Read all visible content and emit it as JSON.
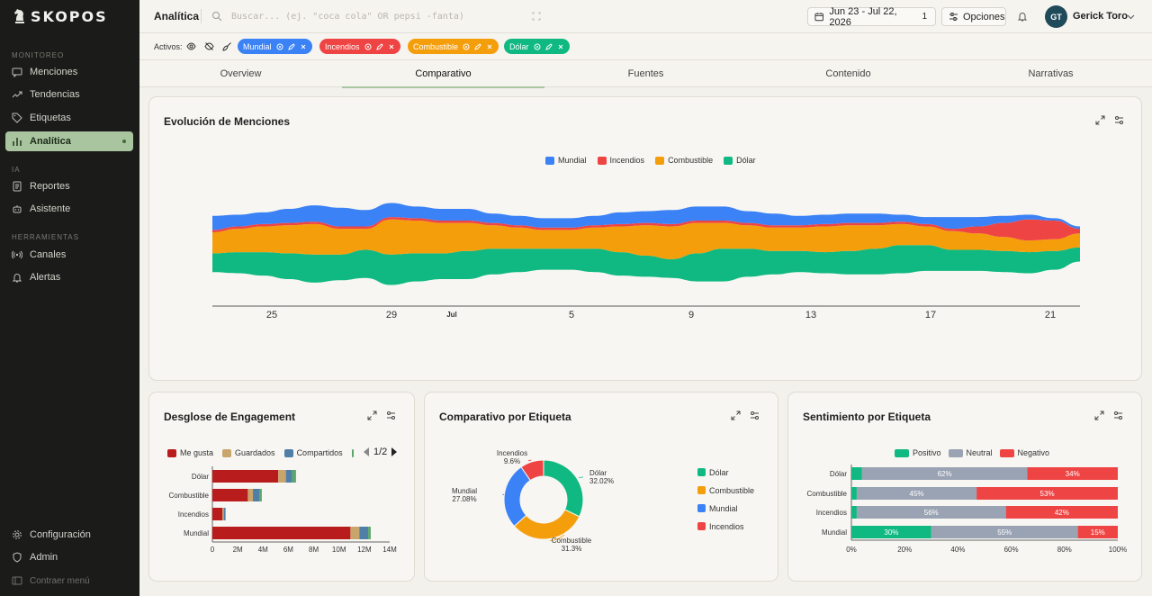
{
  "app": {
    "brand": "SKOPOS"
  },
  "sidebar": {
    "sections": [
      "MONITOREO",
      "IA",
      "HERRAMIENTAS"
    ],
    "items": [
      {
        "label": "Menciones",
        "icon": "chat-icon"
      },
      {
        "label": "Tendencias",
        "icon": "trend-icon"
      },
      {
        "label": "Etiquetas",
        "icon": "tag-icon"
      },
      {
        "label": "Analítica",
        "icon": "bar-chart-icon",
        "active": true
      },
      {
        "label": "Reportes",
        "icon": "report-icon"
      },
      {
        "label": "Asistente",
        "icon": "bot-icon"
      },
      {
        "label": "Canales",
        "icon": "radio-icon"
      },
      {
        "label": "Alertas",
        "icon": "bell-icon"
      }
    ],
    "footer": [
      {
        "label": "Configuración",
        "icon": "gear-icon"
      },
      {
        "label": "Admin",
        "icon": "shield-icon"
      },
      {
        "label": "Contraer menú",
        "icon": "collapse-icon"
      }
    ]
  },
  "topbar": {
    "title": "Analítica",
    "search_placeholder": "Buscar... (ej. \"coca cola\" OR pepsi -fanta)",
    "date_range": "Jun 23 - Jul 22, 2026",
    "date_count": "1",
    "options_label": "Opciones",
    "user_initials": "GT",
    "user_name": "Gerick Toro"
  },
  "filters": {
    "label": "Activos:",
    "chips": [
      {
        "label": "Mundial",
        "color": "#3b82f6"
      },
      {
        "label": "Incendios",
        "color": "#ef4444"
      },
      {
        "label": "Combustible",
        "color": "#f59e0b"
      },
      {
        "label": "Dólar",
        "color": "#10b981"
      }
    ]
  },
  "tabs": [
    "Overview",
    "Comparativo",
    "Fuentes",
    "Contenido",
    "Narrativas"
  ],
  "evolucion": {
    "title": "Evolución de Menciones",
    "chart_data": {
      "type": "area",
      "stacked": true,
      "streamgraph": true,
      "x_ticks": [
        "25",
        "29",
        "Jul",
        "5",
        "9",
        "13",
        "17",
        "21"
      ],
      "series": [
        {
          "name": "Mundial",
          "color": "#3b82f6",
          "values": [
            6,
            5,
            5,
            6,
            7,
            8,
            7,
            6,
            5,
            5,
            5,
            4,
            4,
            4,
            4,
            4,
            5,
            5,
            6,
            6,
            6,
            5,
            5,
            4,
            4,
            4,
            4,
            3,
            3,
            5,
            4,
            3,
            2,
            1,
            1
          ]
        },
        {
          "name": "Incendios",
          "color": "#ef4444",
          "values": [
            1,
            1,
            1,
            1,
            1,
            1,
            1,
            1,
            1,
            1,
            1,
            1,
            1,
            1,
            1,
            1,
            1,
            1,
            1,
            1,
            1,
            1,
            1,
            1,
            1,
            1,
            1,
            1,
            1,
            1,
            3,
            6,
            9,
            8,
            2
          ]
        },
        {
          "name": "Combustible",
          "color": "#f59e0b",
          "values": [
            9,
            10,
            11,
            12,
            13,
            11,
            9,
            15,
            14,
            13,
            12,
            10,
            9,
            8,
            8,
            9,
            11,
            13,
            14,
            13,
            11,
            10,
            10,
            10,
            11,
            11,
            10,
            9,
            8,
            8,
            7,
            6,
            5,
            5,
            6
          ]
        },
        {
          "name": "Dólar",
          "color": "#10b981",
          "values": [
            8,
            9,
            10,
            11,
            12,
            11,
            12,
            13,
            12,
            11,
            12,
            11,
            10,
            9,
            9,
            10,
            10,
            9,
            8,
            12,
            14,
            12,
            10,
            9,
            9,
            10,
            11,
            12,
            11,
            9,
            9,
            9,
            9,
            8,
            6
          ]
        }
      ]
    }
  },
  "engagement": {
    "title": "Desglose de Engagement",
    "page": "1/2",
    "chart_data": {
      "type": "bar",
      "orientation": "horizontal",
      "stacked": true,
      "categories": [
        "Dólar",
        "Combustible",
        "Incendios",
        "Mundial"
      ],
      "series": [
        {
          "name": "Me gusta",
          "color": "#b91c1c",
          "values": [
            5.2,
            2.8,
            0.8,
            10.9
          ]
        },
        {
          "name": "Guardados",
          "color": "#c9a56b",
          "values": [
            0.6,
            0.4,
            0.1,
            0.7
          ]
        },
        {
          "name": "Compartidos",
          "color": "#4f7fa6",
          "values": [
            0.5,
            0.5,
            0.1,
            0.7
          ]
        },
        {
          "name": "",
          "color": "#5aa66b",
          "values": [
            0.3,
            0.2,
            0.05,
            0.2
          ]
        }
      ],
      "x_ticks": [
        "0",
        "2M",
        "4M",
        "6M",
        "8M",
        "10M",
        "12M",
        "14M"
      ],
      "xlim": [
        0,
        14
      ]
    }
  },
  "comparativo": {
    "title": "Comparativo por Etiqueta",
    "chart_data": {
      "type": "pie",
      "donut": true,
      "slices": [
        {
          "name": "Dólar",
          "value": 32.02,
          "label": "32.02%",
          "color": "#10b981"
        },
        {
          "name": "Combustible",
          "value": 31.3,
          "label": "31.3%",
          "color": "#f59e0b"
        },
        {
          "name": "Mundial",
          "value": 27.08,
          "label": "27.08%",
          "color": "#3b82f6"
        },
        {
          "name": "Incendios",
          "value": 9.6,
          "label": "9.6%",
          "color": "#ef4444"
        }
      ]
    }
  },
  "sentimiento": {
    "title": "Sentimiento por Etiqueta",
    "chart_data": {
      "type": "bar",
      "orientation": "horizontal",
      "stacked": true,
      "percent": true,
      "categories": [
        "Dólar",
        "Combustible",
        "Incendios",
        "Mundial"
      ],
      "series": [
        {
          "name": "Positivo",
          "color": "#10b981",
          "values": [
            4,
            2,
            2,
            30
          ],
          "labels": [
            "",
            "",
            "",
            "30%"
          ]
        },
        {
          "name": "Neutral",
          "color": "#9aa3b3",
          "values": [
            62,
            45,
            56,
            55
          ],
          "labels": [
            "62%",
            "45%",
            "56%",
            "55%"
          ]
        },
        {
          "name": "Negativo",
          "color": "#ef4444",
          "values": [
            34,
            53,
            42,
            15
          ],
          "labels": [
            "34%",
            "53%",
            "42%",
            "15%"
          ]
        }
      ],
      "x_ticks": [
        "0%",
        "20%",
        "40%",
        "60%",
        "80%",
        "100%"
      ],
      "xlim": [
        0,
        100
      ]
    }
  }
}
